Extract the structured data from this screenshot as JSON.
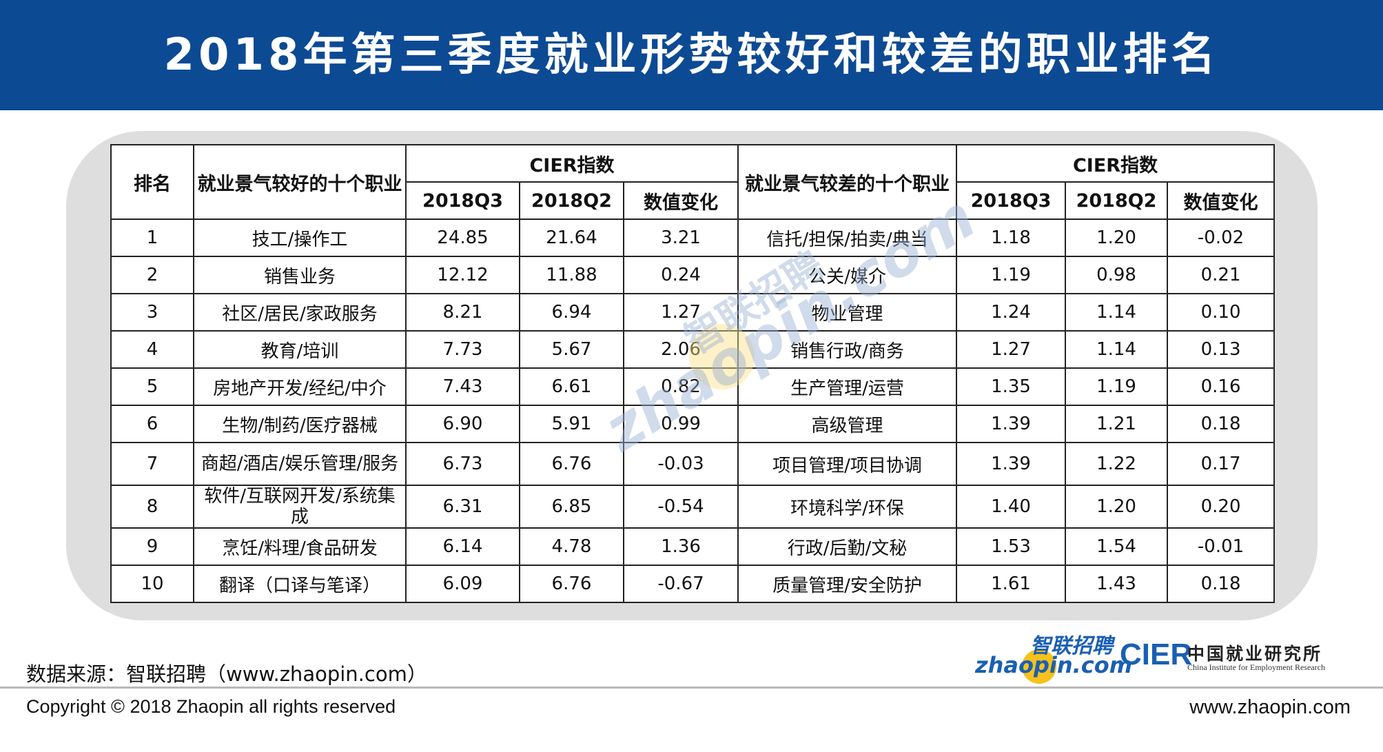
{
  "title": "2018年第三季度就业形势较好和较差的职业排名",
  "table": {
    "headers": {
      "rank": "排名",
      "good_jobs": "就业景气较好的十个职业",
      "cier_good": "CIER指数",
      "bad_jobs": "就业景气较差的十个职业",
      "cier_bad": "CIER指数",
      "q3": "2018Q3",
      "q2": "2018Q2",
      "change": "数值变化"
    },
    "rows": [
      {
        "rank": "1",
        "good": "技工/操作工",
        "g_q3": "24.85",
        "g_q2": "21.64",
        "g_chg": "3.21",
        "bad": "信托/担保/拍卖/典当",
        "b_q3": "1.18",
        "b_q2": "1.20",
        "b_chg": "-0.02"
      },
      {
        "rank": "2",
        "good": "销售业务",
        "g_q3": "12.12",
        "g_q2": "11.88",
        "g_chg": "0.24",
        "bad": "公关/媒介",
        "b_q3": "1.19",
        "b_q2": "0.98",
        "b_chg": "0.21"
      },
      {
        "rank": "3",
        "good": "社区/居民/家政服务",
        "g_q3": "8.21",
        "g_q2": "6.94",
        "g_chg": "1.27",
        "bad": "物业管理",
        "b_q3": "1.24",
        "b_q2": "1.14",
        "b_chg": "0.10"
      },
      {
        "rank": "4",
        "good": "教育/培训",
        "g_q3": "7.73",
        "g_q2": "5.67",
        "g_chg": "2.06",
        "bad": "销售行政/商务",
        "b_q3": "1.27",
        "b_q2": "1.14",
        "b_chg": "0.13"
      },
      {
        "rank": "5",
        "good": "房地产开发/经纪/中介",
        "g_q3": "7.43",
        "g_q2": "6.61",
        "g_chg": "0.82",
        "bad": "生产管理/运营",
        "b_q3": "1.35",
        "b_q2": "1.19",
        "b_chg": "0.16"
      },
      {
        "rank": "6",
        "good": "生物/制药/医疗器械",
        "g_q3": "6.90",
        "g_q2": "5.91",
        "g_chg": "0.99",
        "bad": "高级管理",
        "b_q3": "1.39",
        "b_q2": "1.21",
        "b_chg": "0.18"
      },
      {
        "rank": "7",
        "good": "商超/酒店/娱乐管理/服务",
        "g_q3": "6.73",
        "g_q2": "6.76",
        "g_chg": "-0.03",
        "bad": "项目管理/项目协调",
        "b_q3": "1.39",
        "b_q2": "1.22",
        "b_chg": "0.17"
      },
      {
        "rank": "8",
        "good": "软件/互联网开发/系统集成",
        "g_q3": "6.31",
        "g_q2": "6.85",
        "g_chg": "-0.54",
        "bad": "环境科学/环保",
        "b_q3": "1.40",
        "b_q2": "1.20",
        "b_chg": "0.20"
      },
      {
        "rank": "9",
        "good": "烹饪/料理/食品研发",
        "g_q3": "6.14",
        "g_q2": "4.78",
        "g_chg": "1.36",
        "bad": "行政/后勤/文秘",
        "b_q3": "1.53",
        "b_q2": "1.54",
        "b_chg": "-0.01"
      },
      {
        "rank": "10",
        "good": "翻译（口译与笔译）",
        "g_q3": "6.09",
        "g_q2": "6.76",
        "g_chg": "-0.67",
        "bad": "质量管理/安全防护",
        "b_q3": "1.61",
        "b_q2": "1.43",
        "b_chg": "0.18"
      }
    ]
  },
  "watermark": {
    "en": "zhaopin.com",
    "cn": "智联招聘"
  },
  "footer": {
    "source": "数据来源：智联招聘（www.zhaopin.com）",
    "copyright": "Copyright © 2018 Zhaopin all rights reserved",
    "site": "www.zhaopin.com"
  },
  "logos": {
    "zhaopin_cn": "智联招聘",
    "zhaopin_en": "zhaopin.com",
    "cier_mark": "CIER",
    "cier_cn": "中国就业研究所",
    "cier_en": "China Institute for Employment Research"
  },
  "colors": {
    "header_bg": "#0d4a94",
    "panel_bg": "#dedede",
    "brand_blue": "#1a5fb4",
    "brand_yellow": "#f6c21b"
  }
}
